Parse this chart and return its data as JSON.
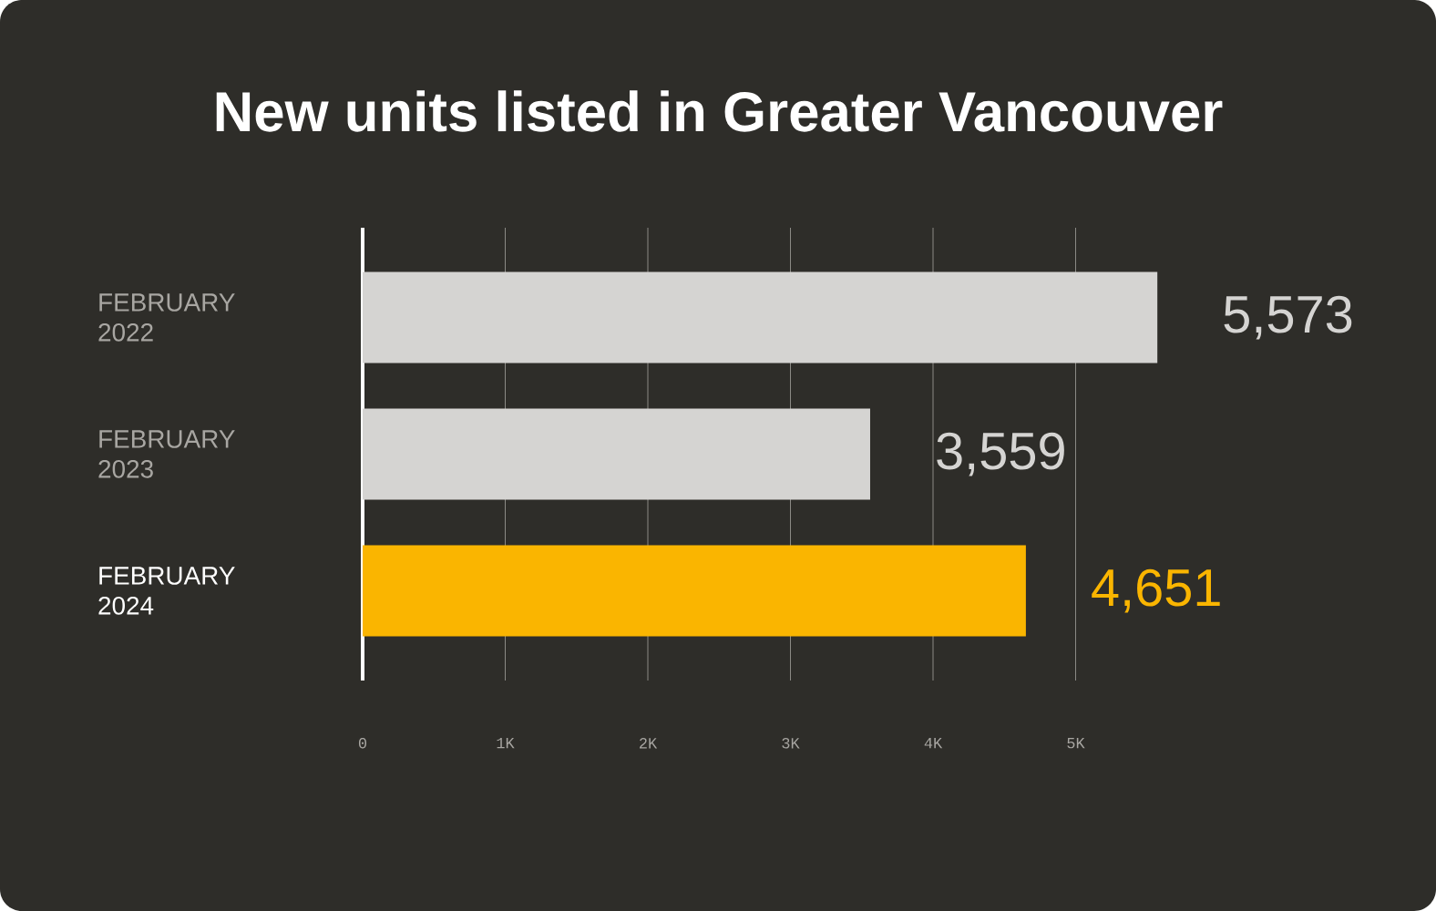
{
  "chart_data": {
    "type": "bar",
    "orientation": "horizontal",
    "title": "New units listed in Greater Vancouver",
    "categories": [
      "FEBRUARY 2022",
      "FEBRUARY 2023",
      "FEBRUARY 2024"
    ],
    "values": [
      5573,
      3559,
      4651
    ],
    "colors": [
      "#d5d4d2",
      "#d5d4d2",
      "#fab500"
    ],
    "value_labels": [
      "5,573",
      "3,559",
      "4,651"
    ],
    "xlim": [
      0,
      5573
    ],
    "xticks": [
      0,
      {
        "value": 1000,
        "label": "1K"
      },
      {
        "value": 2000,
        "label": "2K"
      },
      {
        "value": 3000,
        "label": "3K"
      },
      {
        "value": 4000,
        "label": "4K"
      },
      {
        "value": 5000,
        "label": "5K"
      }
    ],
    "grid": "x"
  }
}
